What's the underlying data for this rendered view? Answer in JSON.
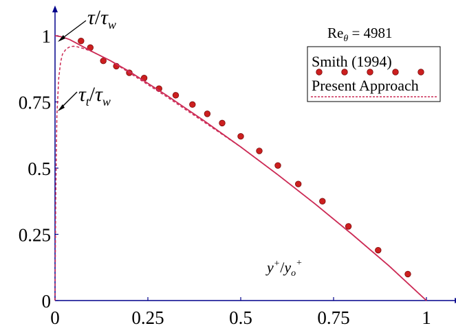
{
  "chart_data": {
    "type": "line",
    "title": "",
    "xlabel": "",
    "ylabel": "",
    "xlim": [
      0,
      1.08
    ],
    "ylim": [
      0,
      1.1
    ],
    "xticks": [
      {
        "value": 0,
        "label": "0"
      },
      {
        "value": 0.25,
        "label": "0.25"
      },
      {
        "value": 0.5,
        "label": "0.5"
      },
      {
        "value": 0.75,
        "label": "0.75"
      },
      {
        "value": 1,
        "label": "1"
      }
    ],
    "yticks": [
      {
        "value": 0,
        "label": "0"
      },
      {
        "value": 0.25,
        "label": "0.25"
      },
      {
        "value": 0.5,
        "label": "0.5"
      },
      {
        "value": 0.75,
        "label": "0.75"
      },
      {
        "value": 1,
        "label": "1"
      }
    ],
    "grid": false,
    "legend_position": "top-right",
    "reynolds_label": {
      "base": "Re",
      "sub": "θ",
      "rest": " = 4981"
    },
    "annotations": {
      "x_axis_inline": {
        "a": "y",
        "a_sup": "+",
        "slash": "/",
        "b": "y",
        "b_sub": "o",
        "b_sup": "+"
      },
      "total_stress": {
        "a": "τ",
        "slash": "/",
        "b": "τ",
        "b_sub": "w"
      },
      "turbulent_stress": {
        "a": "τ",
        "a_sub": "t",
        "slash": "/",
        "b": "τ",
        "b_sub": "w"
      }
    },
    "series": [
      {
        "name": "Smith (1994)",
        "style": "markers",
        "color": "#cc1f1f",
        "x": [
          0.07,
          0.095,
          0.13,
          0.165,
          0.2,
          0.24,
          0.28,
          0.325,
          0.37,
          0.41,
          0.45,
          0.5,
          0.55,
          0.6,
          0.655,
          0.72,
          0.79,
          0.87,
          0.95
        ],
        "y": [
          0.98,
          0.955,
          0.905,
          0.885,
          0.86,
          0.84,
          0.8,
          0.775,
          0.74,
          0.705,
          0.67,
          0.62,
          0.565,
          0.51,
          0.44,
          0.375,
          0.28,
          0.19,
          0.1
        ]
      },
      {
        "name": "Present Approach",
        "style": "dashed",
        "color": "#cc2a55",
        "x": [
          0.0,
          0.002,
          0.005,
          0.01,
          0.015,
          0.02,
          0.03,
          0.04,
          0.05,
          0.06,
          0.08,
          0.1,
          0.15,
          0.2,
          0.3,
          0.4,
          0.5,
          0.6,
          0.7,
          0.8,
          0.9,
          1.0
        ],
        "y": [
          0.0,
          0.4,
          0.7,
          0.84,
          0.9,
          0.93,
          0.95,
          0.958,
          0.96,
          0.958,
          0.95,
          0.94,
          0.905,
          0.86,
          0.77,
          0.675,
          0.58,
          0.475,
          0.365,
          0.25,
          0.13,
          0.0
        ]
      },
      {
        "name": "",
        "style": "solid",
        "color": "#cc2a55",
        "x": [
          0.0,
          0.02,
          0.04,
          0.06,
          0.08,
          0.1,
          0.15,
          0.2,
          0.3,
          0.4,
          0.5,
          0.6,
          0.7,
          0.8,
          0.9,
          1.0
        ],
        "y": [
          1.0,
          0.995,
          0.985,
          0.97,
          0.955,
          0.94,
          0.905,
          0.865,
          0.775,
          0.68,
          0.58,
          0.475,
          0.365,
          0.25,
          0.13,
          0.0
        ]
      }
    ],
    "colors": {
      "axis": "#00008b",
      "marker": "#cc1f1f",
      "marker_edge": "#7a0a0a",
      "line": "#cc2a55"
    }
  }
}
